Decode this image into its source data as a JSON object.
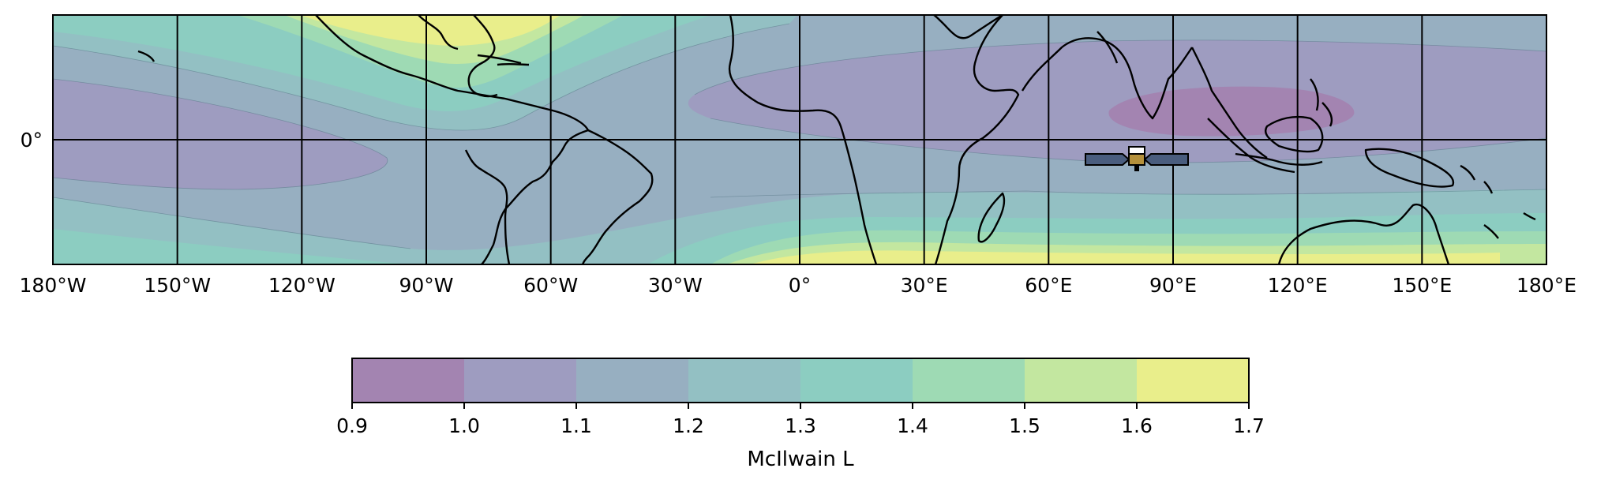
{
  "map": {
    "projection": "PlateCarree",
    "extent": {
      "lon": [
        -180,
        180
      ],
      "lat": [
        -30,
        30
      ]
    },
    "longitude_ticks": [
      {
        "lon": -180,
        "label": "180°W"
      },
      {
        "lon": -150,
        "label": "150°W"
      },
      {
        "lon": -120,
        "label": "120°W"
      },
      {
        "lon": -90,
        "label": "90°W"
      },
      {
        "lon": -60,
        "label": "60°W"
      },
      {
        "lon": -30,
        "label": "30°W"
      },
      {
        "lon": 0,
        "label": "0°"
      },
      {
        "lon": 30,
        "label": "30°E"
      },
      {
        "lon": 60,
        "label": "60°E"
      },
      {
        "lon": 90,
        "label": "90°E"
      },
      {
        "lon": 120,
        "label": "120°E"
      },
      {
        "lon": 150,
        "label": "150°E"
      },
      {
        "lon": 180,
        "label": "180°E"
      }
    ],
    "latitude_ticks": [
      {
        "lat": 0,
        "label": "0°"
      }
    ],
    "gridlines": true,
    "field": "McIlwain L shell (contours)",
    "satellite_marker": {
      "lon": 81,
      "lat": -5,
      "icon": "satellite-icon"
    }
  },
  "colorbar": {
    "label": "McIlwain L",
    "levels": [
      0.9,
      1.0,
      1.1,
      1.2,
      1.3,
      1.4,
      1.5,
      1.6,
      1.7
    ],
    "tick_labels": [
      "0.9",
      "1.0",
      "1.1",
      "1.2",
      "1.3",
      "1.4",
      "1.5",
      "1.6",
      "1.7"
    ],
    "colors": [
      "#a384b1",
      "#9e9cc0",
      "#97afc1",
      "#93c0c3",
      "#8ccdc1",
      "#9edab4",
      "#c3e7a0",
      "#e9ee8b"
    ]
  }
}
